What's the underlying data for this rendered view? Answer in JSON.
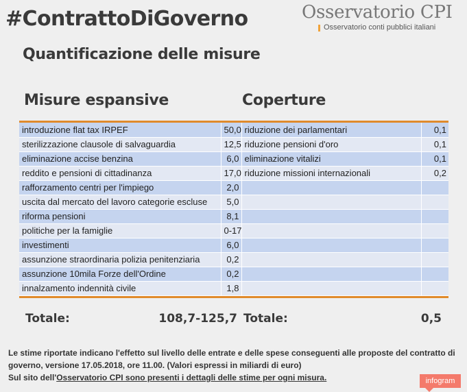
{
  "header": {
    "hashtag": "#ContrattoDiGoverno",
    "logo_name": "Osservatorio CPI",
    "logo_tagline": "Osservatorio conti pubblici italiani"
  },
  "subtitle": "Quantificazione delle misure",
  "colors": {
    "rule": "#e08a2c",
    "row_dark": "#c5d4ef",
    "row_light": "#e3e8f3",
    "badge": "#f47a6b"
  },
  "chart_data": {
    "type": "table",
    "columns": [
      "Misure espansive",
      "Coperture"
    ],
    "rows": [
      {
        "measure": "introduzione flat tax IRPEF",
        "value": "50,0",
        "cover": "riduzione dei parlamentari",
        "cover_value": "0,1"
      },
      {
        "measure": "sterilizzazione clausole di salvaguardia",
        "value": "12,5",
        "cover": "riduzione pensioni d'oro",
        "cover_value": "0,1"
      },
      {
        "measure": "eliminazione accise benzina",
        "value": "6,0",
        "cover": "eliminazione vitalizi",
        "cover_value": "0,1"
      },
      {
        "measure": "reddito e pensioni di cittadinanza",
        "value": "17,0",
        "cover": "riduzione missioni internazionali",
        "cover_value": "0,2"
      },
      {
        "measure": "rafforzamento centri per l'impiego",
        "value": "2,0",
        "cover": "",
        "cover_value": ""
      },
      {
        "measure": "uscita dal mercato del lavoro categorie escluse",
        "value": "5,0",
        "cover": "",
        "cover_value": ""
      },
      {
        "measure": "riforma pensioni",
        "value": "8,1",
        "cover": "",
        "cover_value": ""
      },
      {
        "measure": "politiche per la famiglie",
        "value": "0-17",
        "cover": "",
        "cover_value": ""
      },
      {
        "measure": "investimenti",
        "value": "6,0",
        "cover": "",
        "cover_value": ""
      },
      {
        "measure": "assunzione straordinaria polizia penitenziaria",
        "value": "0,2",
        "cover": "",
        "cover_value": ""
      },
      {
        "measure": "assunzione 10mila Forze dell'Ordine",
        "value": "0,2",
        "cover": "",
        "cover_value": ""
      },
      {
        "measure": "innalzamento indennità civile",
        "value": "1,8",
        "cover": "",
        "cover_value": ""
      }
    ],
    "totals": {
      "left_label": "Totale:",
      "left_value": "108,7-125,7",
      "right_label": "Totale:",
      "right_value": "0,5"
    }
  },
  "notes": {
    "line1": "Le stime riportate indicano l'effetto sul livello delle entrate e delle spese conseguenti alle proposte del contratto di governo, versione 17.05.2018, ore 11.00. (Valori espressi in miliardi di euro)",
    "line2_prefix": "Sul sito dell'",
    "line2_link": "Osservatorio CPI sono presenti i dettagli delle stime per ogni misura."
  },
  "badge": "infogram"
}
